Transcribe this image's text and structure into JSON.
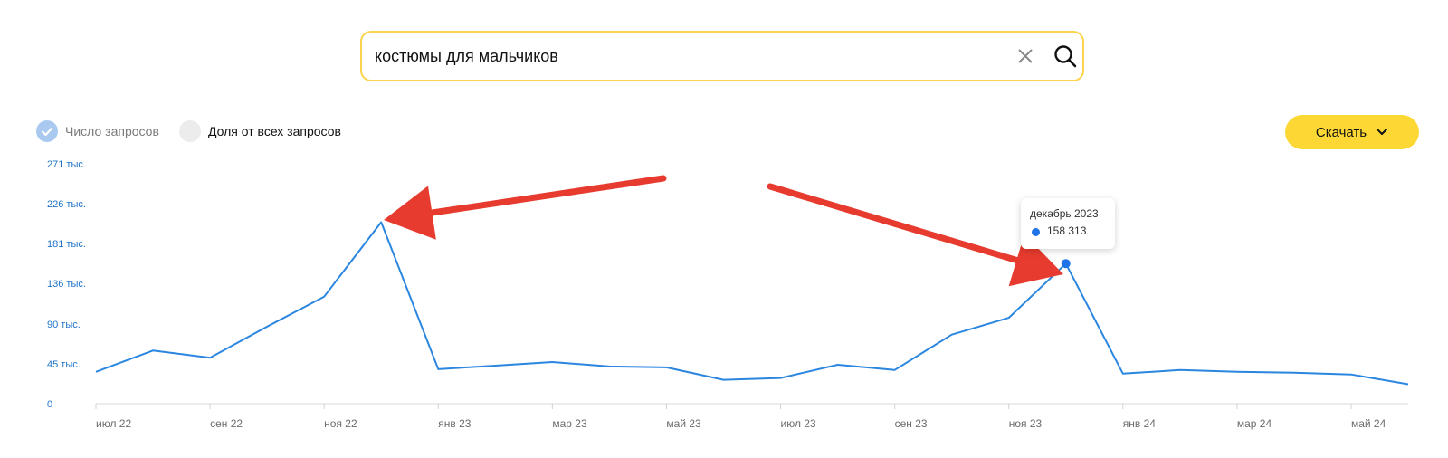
{
  "search": {
    "value": "костюмы для мальчиков"
  },
  "legend": {
    "query_count_label": "Число запросов",
    "share_label": "Доля от всех запросов"
  },
  "toolbar": {
    "download_label": "Скачать"
  },
  "tooltip": {
    "month": "декабрь 2023",
    "value": "158 313"
  },
  "colors": {
    "line": "#2b86e0",
    "arrow": "#e63b2e",
    "accent": "#fdd835"
  },
  "icons": {
    "clear": "close-icon",
    "search": "search-icon",
    "check": "check-icon",
    "dropdown": "chevron-down-icon"
  },
  "chart_data": {
    "type": "line",
    "ylim": [
      0,
      271000
    ],
    "y_ticks": [
      {
        "value": 0,
        "label": "0"
      },
      {
        "value": 45000,
        "label": "45 тыс."
      },
      {
        "value": 90000,
        "label": "90 тыс."
      },
      {
        "value": 136000,
        "label": "136 тыс."
      },
      {
        "value": 181000,
        "label": "181 тыс."
      },
      {
        "value": 226000,
        "label": "226 тыс."
      },
      {
        "value": 271000,
        "label": "271 тыс."
      }
    ],
    "x": [
      "2022-07",
      "2022-08",
      "2022-09",
      "2022-10",
      "2022-11",
      "2022-12",
      "2023-01",
      "2023-02",
      "2023-03",
      "2023-04",
      "2023-05",
      "2023-06",
      "2023-07",
      "2023-08",
      "2023-09",
      "2023-10",
      "2023-11",
      "2023-12",
      "2024-01",
      "2024-02",
      "2024-03",
      "2024-04",
      "2024-05",
      "2024-06"
    ],
    "x_tick_labels": [
      {
        "index": 0,
        "label": "июл 22"
      },
      {
        "index": 2,
        "label": "сен 22"
      },
      {
        "index": 4,
        "label": "ноя 22"
      },
      {
        "index": 6,
        "label": "янв 23"
      },
      {
        "index": 8,
        "label": "мар 23"
      },
      {
        "index": 10,
        "label": "май 23"
      },
      {
        "index": 12,
        "label": "июл 23"
      },
      {
        "index": 14,
        "label": "сен 23"
      },
      {
        "index": 16,
        "label": "ноя 23"
      },
      {
        "index": 18,
        "label": "янв 24"
      },
      {
        "index": 20,
        "label": "мар 24"
      },
      {
        "index": 22,
        "label": "май 24"
      }
    ],
    "series": [
      {
        "values": [
          36000,
          60000,
          52000,
          87000,
          121000,
          205000,
          39000,
          43000,
          47000,
          42000,
          41000,
          27000,
          29000,
          44000,
          38000,
          78000,
          97000,
          158313,
          34000,
          38000,
          36000,
          35000,
          33000,
          22000
        ]
      }
    ],
    "highlight": {
      "index": 17,
      "label": "декабрь 2023",
      "value": 158313
    },
    "grid": false
  }
}
